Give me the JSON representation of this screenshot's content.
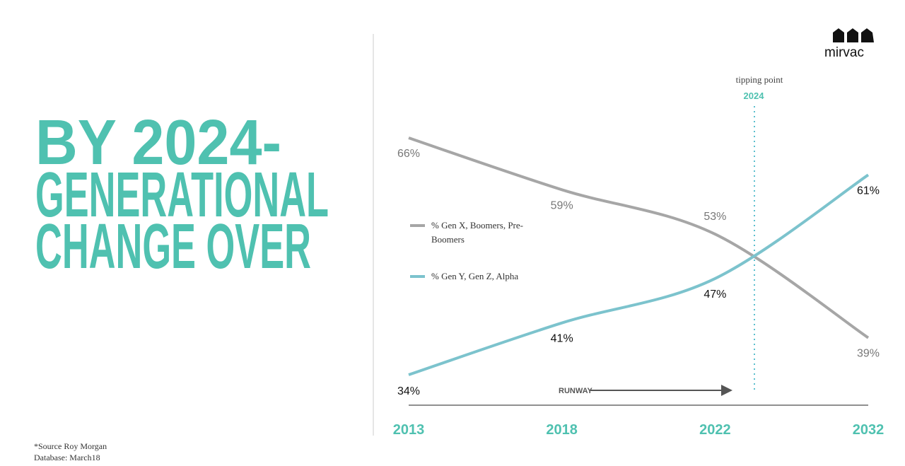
{
  "headline": [
    "BY 2024-",
    "GENERATIONAL",
    "CHANGE OVER"
  ],
  "logo": "mirvac",
  "source": [
    "*Source Roy Morgan",
    "Database:  March18"
  ],
  "chart_data": {
    "type": "line",
    "categories": [
      "2013",
      "2018",
      "2022",
      "2032"
    ],
    "series": [
      {
        "name": "% Gen X, Boomers, Pre-Boomers",
        "color": "#a6a6a6",
        "values": [
          66,
          59,
          53,
          39
        ],
        "value_labels": [
          "66%",
          "59%",
          "53%",
          "39%"
        ]
      },
      {
        "name": "% Gen Y, Gen Z, Alpha",
        "color": "#7cc3cd",
        "values": [
          34,
          41,
          47,
          61
        ],
        "value_labels": [
          "34%",
          "41%",
          "47%",
          "61%"
        ]
      }
    ],
    "annotations": {
      "tipping_point": "tipping point",
      "tipping_year": "2024",
      "runway": "RUNWAY"
    }
  }
}
